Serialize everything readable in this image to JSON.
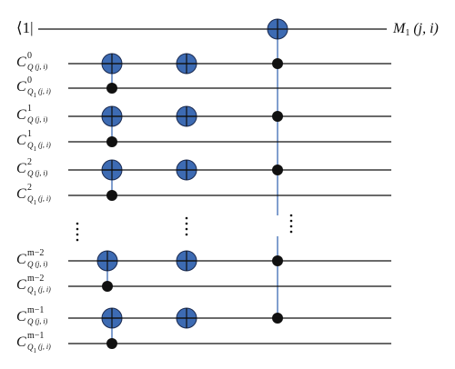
{
  "top_label": "⟨1|",
  "output_label": {
    "base": "M",
    "sub": "1",
    "args": "(j, i)"
  },
  "rows": [
    {
      "base": "C",
      "sup": "0",
      "sub": "Q",
      "args": "(j, i)"
    },
    {
      "base": "C",
      "sup": "0",
      "sub": "Q",
      "sub_index": "1",
      "args": "(j, i)"
    },
    {
      "base": "C",
      "sup": "1",
      "sub": "Q",
      "args": "(j, i)"
    },
    {
      "base": "C",
      "sup": "1",
      "sub": "Q",
      "sub_index": "1",
      "args": "(j, i)"
    },
    {
      "base": "C",
      "sup": "2",
      "sub": "Q",
      "args": "(j, i)"
    },
    {
      "base": "C",
      "sup": "2",
      "sub": "Q",
      "sub_index": "1",
      "args": "(j, i)"
    },
    {
      "base": "C",
      "sup": "m−2",
      "sub": "Q",
      "args": "(j, i)"
    },
    {
      "base": "C",
      "sup": "m−2",
      "sub": "Q",
      "sub_index": "1",
      "args": "(j, i)"
    },
    {
      "base": "C",
      "sup": "m−1",
      "sub": "Q",
      "args": "(j, i)"
    },
    {
      "base": "C",
      "sup": "m−1",
      "sub": "Q",
      "sub_index": "1",
      "args": "(j, i)"
    }
  ]
}
